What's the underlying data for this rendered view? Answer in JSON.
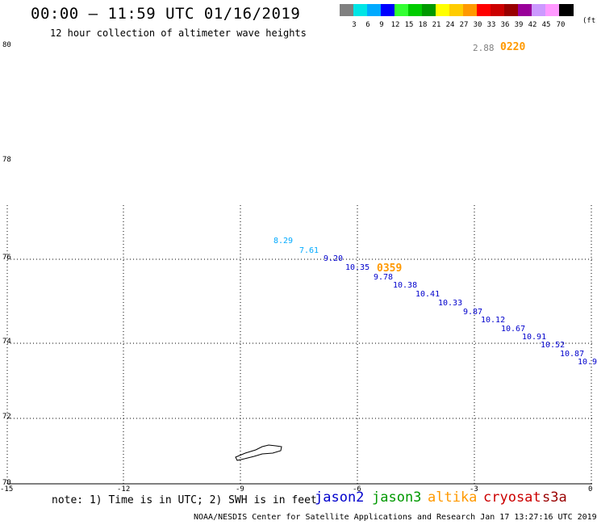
{
  "header": {
    "title": "00:00 – 11:59 UTC 01/16/2019",
    "subtitle": "12 hour collection of altimeter wave heights"
  },
  "color_scale": {
    "unit": "(ft)",
    "labels": [
      "3",
      "6",
      "9",
      "12",
      "15",
      "18",
      "21",
      "24",
      "27",
      "30",
      "33",
      "36",
      "39",
      "42",
      "45",
      "70"
    ],
    "colors": [
      "#808080",
      "#00e5e5",
      "#00aaff",
      "#0000ff",
      "#33ff33",
      "#00cc00",
      "#009900",
      "#ffff00",
      "#ffcc00",
      "#ff9900",
      "#ff0000",
      "#cc0000",
      "#990000",
      "#990099",
      "#cc99ff",
      "#ff99ff",
      "#000000"
    ]
  },
  "axes": {
    "lat_labels": [
      "80",
      "78",
      "76",
      "74",
      "72",
      "70"
    ],
    "lon_labels": [
      "-15",
      "-12",
      "-9",
      "-6",
      "-3",
      "0"
    ]
  },
  "pass_times": [
    {
      "text": "0220",
      "color": "#ff9900"
    },
    {
      "text": "0359",
      "color": "#ff9900"
    }
  ],
  "top_value": {
    "text": "2.88",
    "color": "#808080"
  },
  "wave_heights": [
    {
      "text": "8.29",
      "color": "#00aaff"
    },
    {
      "text": "7.61",
      "color": "#00aaff"
    },
    {
      "text": "9.20",
      "color": "#0000cc"
    },
    {
      "text": "10.35",
      "color": "#0000cc"
    },
    {
      "text": "9.78",
      "color": "#0000cc"
    },
    {
      "text": "10.38",
      "color": "#0000cc"
    },
    {
      "text": "10.41",
      "color": "#0000cc"
    },
    {
      "text": "10.33",
      "color": "#0000cc"
    },
    {
      "text": "9.87",
      "color": "#0000cc"
    },
    {
      "text": "10.12",
      "color": "#0000cc"
    },
    {
      "text": "10.67",
      "color": "#0000cc"
    },
    {
      "text": "10.91",
      "color": "#0000cc"
    },
    {
      "text": "10.52",
      "color": "#0000cc"
    },
    {
      "text": "10.87",
      "color": "#0000cc"
    },
    {
      "text": "10.9",
      "color": "#0000cc"
    }
  ],
  "footer": {
    "note": "note: 1) Time is in UTC; 2) SWH is in feet",
    "satellites": [
      {
        "name": "jason2",
        "color": "#0000cc"
      },
      {
        "name": "jason3",
        "color": "#009900"
      },
      {
        "name": "altika",
        "color": "#ff9900"
      },
      {
        "name": "cryosat",
        "color": "#cc0000"
      },
      {
        "name": "s3a",
        "color": "#990000"
      }
    ],
    "credit": "NOAA/NESDIS Center for Satellite Applications and Research   Jan 17 13:27:16 UTC 2019"
  }
}
